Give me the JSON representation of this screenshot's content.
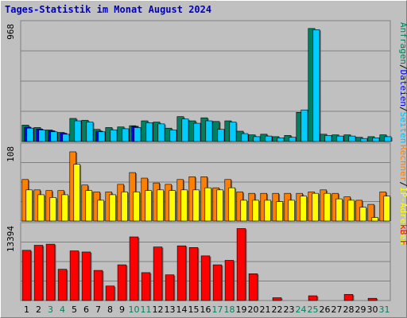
{
  "title": "Tages-Statistik im Monat August 2024",
  "chart_data": [
    {
      "type": "bar",
      "panel": "top",
      "ymax_label": "968",
      "ylim": [
        0,
        968
      ],
      "categories": [
        "1",
        "2",
        "3",
        "4",
        "5",
        "6",
        "7",
        "8",
        "9",
        "10",
        "11",
        "12",
        "13",
        "14",
        "15",
        "16",
        "17",
        "18",
        "19",
        "20",
        "21",
        "22",
        "23",
        "24",
        "25",
        "26",
        "27",
        "28",
        "29",
        "30",
        "31"
      ],
      "weekend_days": [
        "3",
        "4",
        "10",
        "11",
        "17",
        "18",
        "24",
        "25",
        "31"
      ],
      "legend": [
        {
          "label": "Anfragen",
          "color": "#008060"
        },
        {
          "label": "/",
          "color": "#000000"
        },
        {
          "label": "Dateien",
          "color": "#0000ff"
        },
        {
          "label": "/",
          "color": "#000000"
        },
        {
          "label": "Seiten",
          "color": "#00c0ff"
        }
      ],
      "series": [
        {
          "name": "Anfragen",
          "color": "#008060",
          "values": [
            135,
            115,
            95,
            75,
            190,
            175,
            100,
            115,
            120,
            130,
            170,
            160,
            110,
            205,
            170,
            195,
            165,
            170,
            85,
            55,
            60,
            40,
            50,
            240,
            930,
            60,
            55,
            55,
            35,
            40,
            55
          ]
        },
        {
          "name": "Dateien",
          "color": "#0000ff",
          "values": [
            118,
            102,
            88,
            68,
            0,
            0,
            85,
            0,
            0,
            125,
            0,
            0,
            0,
            0,
            0,
            0,
            0,
            0,
            0,
            0,
            0,
            0,
            0,
            0,
            0,
            0,
            0,
            0,
            0,
            0,
            0
          ]
        },
        {
          "name": "Seiten",
          "color": "#00ccff",
          "values": [
            110,
            95,
            80,
            60,
            170,
            160,
            80,
            95,
            105,
            115,
            155,
            145,
            95,
            185,
            150,
            170,
            100,
            160,
            65,
            40,
            45,
            30,
            35,
            260,
            920,
            50,
            45,
            45,
            25,
            30,
            40
          ]
        }
      ]
    },
    {
      "type": "bar",
      "panel": "middle",
      "ymax_label": "108",
      "ylim": [
        0,
        108
      ],
      "legend": [
        {
          "label": "Rechner",
          "color": "#ff8000"
        },
        {
          "label": "/",
          "color": "#000000"
        },
        {
          "label": "IP-Adressen",
          "color": "#ffff00"
        }
      ],
      "series": [
        {
          "name": "Rechner",
          "color": "#ff8000",
          "values": [
            60,
            45,
            44,
            44,
            100,
            52,
            42,
            42,
            53,
            70,
            62,
            55,
            53,
            60,
            64,
            64,
            48,
            60,
            42,
            40,
            40,
            40,
            40,
            40,
            42,
            45,
            40,
            35,
            30,
            24,
            42
          ]
        },
        {
          "name": "IP-Adressen",
          "color": "#ffff00",
          "values": [
            45,
            38,
            34,
            38,
            82,
            44,
            30,
            38,
            42,
            42,
            44,
            45,
            44,
            45,
            45,
            48,
            45,
            48,
            30,
            30,
            30,
            28,
            30,
            36,
            40,
            40,
            32,
            30,
            20,
            5,
            36
          ]
        }
      ]
    },
    {
      "type": "bar",
      "panel": "bottom",
      "ymax_label": "13394",
      "ylim": [
        0,
        13394
      ],
      "legend": [
        {
          "label": "kB F",
          "color": "#ff0000"
        }
      ],
      "series": [
        {
          "name": "kB F",
          "color": "#ff0000",
          "values": [
            9000,
            9900,
            10100,
            5600,
            8900,
            8700,
            5400,
            2600,
            6400,
            11400,
            5000,
            9600,
            4600,
            9800,
            9500,
            8000,
            6400,
            7200,
            12900,
            4800,
            0,
            500,
            0,
            0,
            850,
            0,
            0,
            1100,
            0,
            400,
            0
          ]
        }
      ]
    }
  ]
}
